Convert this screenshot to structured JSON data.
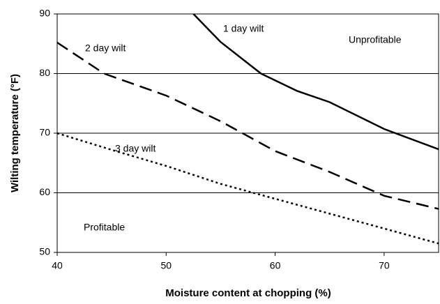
{
  "chart_data": {
    "type": "line",
    "x_label": "Moisture content at chopping (%)",
    "y_label": "Wilting temperature (°F)",
    "xlim": [
      40,
      75
    ],
    "xticks": [
      40,
      50,
      60,
      70
    ],
    "ylim": [
      50,
      90
    ],
    "yticks": [
      50,
      60,
      70,
      80,
      90
    ],
    "grid": true,
    "annotations": [
      "Unprofitable",
      "Profitable"
    ],
    "series": [
      {
        "name": "1 day wilt",
        "color": "#000000",
        "dash": "solid",
        "x": [
          52.5,
          55,
          58.7,
          62,
          65,
          70,
          75
        ],
        "values": [
          90,
          85.3,
          80,
          77.1,
          75.2,
          70.7,
          67.3
        ]
      },
      {
        "name": "2 day wilt",
        "color": "#000000",
        "dash": "dashed",
        "x": [
          40,
          44.3,
          50,
          55,
          60,
          65,
          70,
          75
        ],
        "values": [
          85.2,
          80,
          76.3,
          72,
          67,
          63.5,
          59.5,
          57.3
        ]
      },
      {
        "name": "3 day wilt",
        "color": "#000000",
        "dash": "dotted",
        "x": [
          40,
          45,
          50,
          55,
          60,
          65,
          70,
          75
        ],
        "values": [
          70,
          67.2,
          64.5,
          61.5,
          59,
          56.5,
          54,
          51.5
        ]
      }
    ]
  }
}
